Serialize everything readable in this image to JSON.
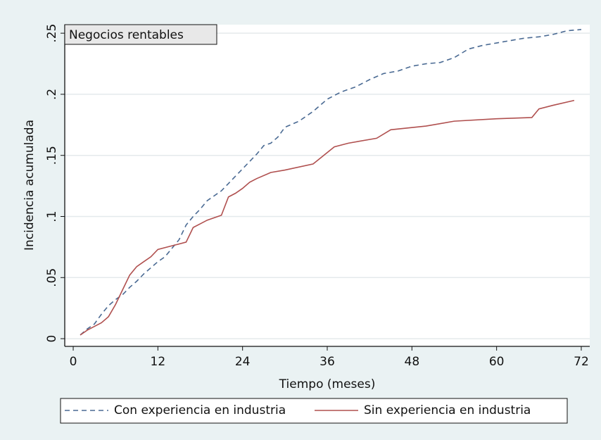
{
  "chart_data": {
    "type": "line",
    "title": "Negocios rentables",
    "x_label": "Tiempo (meses)",
    "y_label": "Incidencia acumulada",
    "xlim": [
      -1.2,
      73.2
    ],
    "ylim": [
      -0.0063,
      0.257
    ],
    "xticks": [
      0,
      12,
      24,
      36,
      48,
      60,
      72
    ],
    "yticks": [
      0,
      {
        "value": 0.05,
        "label": ".05"
      },
      {
        "value": 0.1,
        "label": ".1"
      },
      {
        "value": 0.15,
        "label": ".15"
      },
      {
        "value": 0.2,
        "label": ".2"
      },
      {
        "value": 0.25,
        "label": ".25"
      }
    ],
    "grid": true,
    "legend": "bottom",
    "series": [
      {
        "name": "Con experiencia en industria",
        "color": "#4a6a93",
        "dash": true,
        "x": [
          1,
          2,
          3,
          4,
          5,
          6,
          7,
          8,
          9,
          10,
          11,
          12,
          13,
          14,
          15,
          16,
          17,
          18,
          19,
          20,
          21,
          22,
          23,
          24,
          25,
          26,
          27,
          28,
          29,
          30,
          32,
          34,
          36,
          38,
          40,
          42,
          44,
          46,
          48,
          50,
          52,
          54,
          56,
          58,
          60,
          62,
          64,
          66,
          68,
          70,
          72
        ],
        "values": [
          0.003,
          0.008,
          0.012,
          0.02,
          0.027,
          0.032,
          0.036,
          0.042,
          0.047,
          0.053,
          0.058,
          0.063,
          0.067,
          0.074,
          0.081,
          0.093,
          0.1,
          0.106,
          0.113,
          0.117,
          0.121,
          0.127,
          0.133,
          0.139,
          0.145,
          0.151,
          0.158,
          0.16,
          0.165,
          0.173,
          0.178,
          0.186,
          0.196,
          0.202,
          0.206,
          0.212,
          0.217,
          0.219,
          0.223,
          0.225,
          0.226,
          0.23,
          0.237,
          0.24,
          0.242,
          0.244,
          0.246,
          0.247,
          0.249,
          0.252,
          0.253
        ]
      },
      {
        "name": "Sin experiencia en industria",
        "color": "#b0504f",
        "dash": false,
        "x": [
          1,
          2,
          3,
          4,
          5,
          6,
          7,
          8,
          9,
          10,
          11,
          12,
          14,
          16,
          17,
          18,
          19,
          21,
          22,
          23,
          24,
          25,
          26,
          28,
          30,
          34,
          37,
          39,
          43,
          45,
          50,
          54,
          60,
          65,
          66,
          68,
          71
        ],
        "values": [
          0.003,
          0.007,
          0.01,
          0.013,
          0.018,
          0.028,
          0.04,
          0.052,
          0.059,
          0.063,
          0.067,
          0.073,
          0.076,
          0.079,
          0.091,
          0.094,
          0.097,
          0.101,
          0.116,
          0.119,
          0.123,
          0.128,
          0.131,
          0.136,
          0.138,
          0.143,
          0.157,
          0.16,
          0.164,
          0.171,
          0.174,
          0.178,
          0.18,
          0.181,
          0.188,
          0.191,
          0.195
        ]
      }
    ]
  }
}
